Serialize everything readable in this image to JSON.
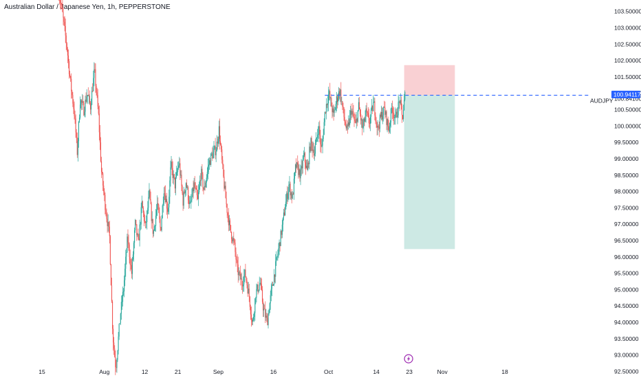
{
  "title": "Australian Dollar / Japanese Yen, 1h, PEPPERSTONE",
  "symbol_label": "AUDJPY",
  "price_badge": "100.94117",
  "price_badge_color": "#2962ff",
  "colors": {
    "up": "#26a69a",
    "down": "#ef5350",
    "stop_zone": "#f9d0d3",
    "target_zone": "#cde9e4",
    "line": "#2962ff"
  },
  "flash_icon": "lightning-bolt-icon",
  "chart_data": {
    "type": "candlestick",
    "ylim": [
      92.3,
      103.85
    ],
    "yticks": [
      "103.50000",
      "103.00000",
      "102.50000",
      "102.00000",
      "101.50000",
      "101.00000",
      "100.84100",
      "100.50000",
      "100.00000",
      "99.50000",
      "99.00000",
      "98.50000",
      "98.00000",
      "97.50000",
      "97.00000",
      "96.50000",
      "96.00000",
      "95.50000",
      "95.00000",
      "94.50000",
      "94.00000",
      "93.50000",
      "93.00000",
      "92.50000"
    ],
    "ytick_values": [
      103.5,
      103.0,
      102.5,
      102.0,
      101.5,
      101.0,
      100.841,
      100.5,
      100.0,
      99.5,
      99.0,
      98.5,
      98.0,
      97.5,
      97.0,
      96.5,
      96.0,
      95.5,
      95.0,
      94.5,
      94.0,
      93.5,
      93.0,
      92.5
    ],
    "x_labels": [
      {
        "label": "15",
        "day": 0
      },
      {
        "label": "Aug",
        "day": 17
      },
      {
        "label": "12",
        "day": 28
      },
      {
        "label": "21",
        "day": 37
      },
      {
        "label": "Sep",
        "day": 48
      },
      {
        "label": "16",
        "day": 63
      },
      {
        "label": "Oct",
        "day": 78
      },
      {
        "label": "14",
        "day": 91
      },
      {
        "label": "23",
        "day": 100
      },
      {
        "label": "Nov",
        "day": 109
      },
      {
        "label": "18",
        "day": 126
      }
    ],
    "x_day_range": [
      -2.5,
      139.3
    ],
    "current_price": 100.94117,
    "dashed_line_price": 100.94117,
    "dashed_line_start_day": 77,
    "position": {
      "start_day": 98.6,
      "end_day": 112.4,
      "stop": 101.86,
      "entry": 100.94,
      "target": 96.24
    },
    "path_points": [
      [
        4.6,
        104.2
      ],
      [
        5.7,
        103.5
      ],
      [
        7,
        102.4
      ],
      [
        8,
        101.3
      ],
      [
        9,
        100.4
      ],
      [
        9.8,
        99.2
      ],
      [
        10.6,
        100.8
      ],
      [
        11.6,
        100.5
      ],
      [
        12.5,
        101.0
      ],
      [
        13.4,
        100.6
      ],
      [
        14.5,
        101.7
      ],
      [
        15.6,
        100.3
      ],
      [
        16.4,
        98.6
      ],
      [
        17.5,
        97.5
      ],
      [
        18.6,
        96.6
      ],
      [
        19.5,
        93.6
      ],
      [
        20.3,
        92.6
      ],
      [
        21.6,
        94.3
      ],
      [
        22.4,
        95.0
      ],
      [
        23.5,
        96.6
      ],
      [
        24.6,
        95.5
      ],
      [
        25.6,
        97.0
      ],
      [
        26.4,
        96.4
      ],
      [
        27.4,
        97.6
      ],
      [
        28.4,
        96.9
      ],
      [
        29.4,
        97.9
      ],
      [
        30.5,
        96.7
      ],
      [
        31.6,
        97.6
      ],
      [
        32.5,
        96.8
      ],
      [
        33.4,
        98.1
      ],
      [
        34.5,
        97.4
      ],
      [
        35.3,
        98.8
      ],
      [
        36.4,
        98.2
      ],
      [
        37.5,
        98.9
      ],
      [
        38.6,
        97.7
      ],
      [
        39.4,
        98.3
      ],
      [
        40.5,
        97.5
      ],
      [
        41.6,
        98.2
      ],
      [
        42.6,
        97.7
      ],
      [
        43.5,
        98.6
      ],
      [
        44.3,
        98.0
      ],
      [
        45.5,
        98.8
      ],
      [
        46.4,
        99.1
      ],
      [
        47.6,
        99.3
      ],
      [
        48.4,
        99.9
      ],
      [
        49.6,
        98.4
      ],
      [
        50.4,
        97.6
      ],
      [
        51.3,
        96.9
      ],
      [
        52.5,
        96.4
      ],
      [
        53.4,
        95.6
      ],
      [
        54.6,
        95.2
      ],
      [
        55.5,
        95.5
      ],
      [
        56.6,
        94.8
      ],
      [
        57.5,
        93.9
      ],
      [
        58.4,
        94.9
      ],
      [
        59.6,
        95.2
      ],
      [
        60.5,
        94.4
      ],
      [
        61.5,
        94.0
      ],
      [
        62.6,
        94.9
      ],
      [
        63.5,
        95.5
      ],
      [
        64.4,
        96.1
      ],
      [
        65.3,
        96.7
      ],
      [
        66.5,
        97.6
      ],
      [
        67.4,
        98.2
      ],
      [
        68.4,
        97.8
      ],
      [
        69.3,
        98.8
      ],
      [
        70.6,
        98.5
      ],
      [
        71.5,
        99.1
      ],
      [
        72.4,
        98.6
      ],
      [
        73.3,
        99.5
      ],
      [
        74.4,
        99.2
      ],
      [
        75.5,
        100.0
      ],
      [
        76.3,
        99.2
      ],
      [
        77.3,
        100.5
      ],
      [
        78.3,
        101.0
      ],
      [
        79.6,
        100.3
      ],
      [
        80.4,
        100.8
      ],
      [
        81.3,
        101.1
      ],
      [
        82.5,
        100.2
      ],
      [
        83.3,
        99.8
      ],
      [
        84.4,
        100.5
      ],
      [
        85.6,
        100.0
      ],
      [
        86.4,
        100.6
      ],
      [
        87.5,
        99.9
      ],
      [
        88.4,
        100.4
      ],
      [
        89.3,
        100.1
      ],
      [
        90.5,
        100.7
      ],
      [
        91.6,
        99.9
      ],
      [
        92.5,
        100.3
      ],
      [
        93.4,
        100.5
      ],
      [
        94.6,
        99.9
      ],
      [
        95.5,
        100.6
      ],
      [
        96.4,
        100.2
      ],
      [
        97.6,
        100.8
      ],
      [
        98.3,
        100.2
      ],
      [
        99.0,
        100.94
      ]
    ]
  }
}
